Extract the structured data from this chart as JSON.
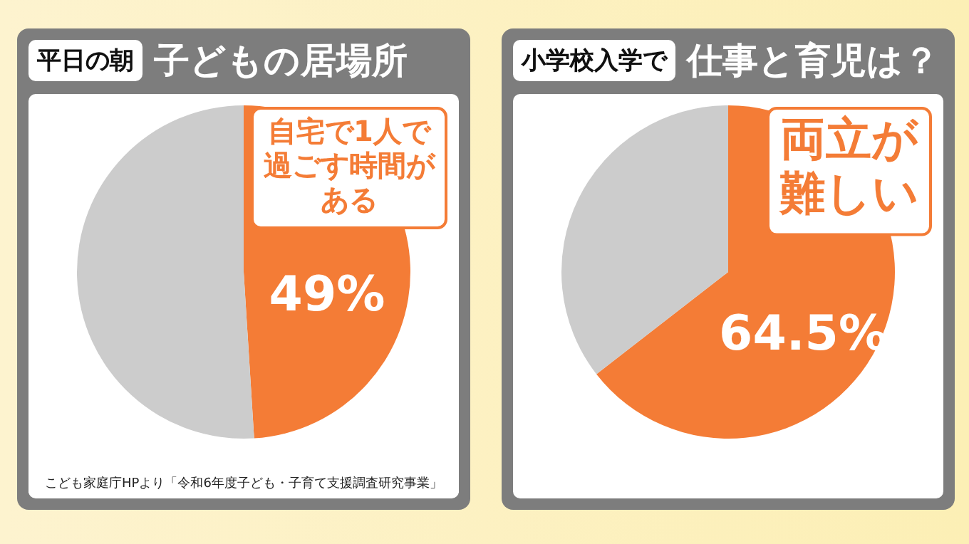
{
  "chart_data": [
    {
      "type": "pie",
      "title": "平日の朝",
      "subtitle": "子どもの居場所",
      "categories": [
        "自宅で1人で過ごす時間がある",
        null
      ],
      "values": [
        49,
        51
      ],
      "colors": [
        "#f47c36",
        "#cccccc"
      ],
      "value_labels": [
        "49%",
        null
      ],
      "legend": false,
      "annotations": [
        "こども家庭庁HPより「令和6年度子ども・子育て支援調査研究事業」"
      ]
    },
    {
      "type": "pie",
      "title": "小学校入学で",
      "subtitle": "仕事と育児は？",
      "categories": [
        "両立が難しい",
        null
      ],
      "values": [
        64.5,
        35.5
      ],
      "colors": [
        "#f47c36",
        "#cccccc"
      ],
      "value_labels": [
        "64.5%",
        null
      ],
      "legend": false
    }
  ]
}
